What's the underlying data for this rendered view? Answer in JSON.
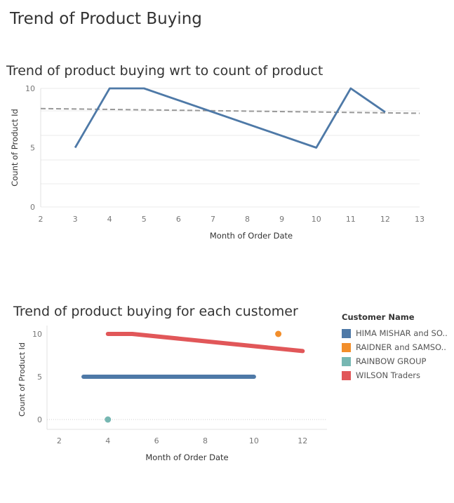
{
  "dashboard": {
    "title": "Trend of Product Buying"
  },
  "legend": {
    "title": "Customer Name",
    "items": [
      {
        "label": "HIMA MISHAR and SO..",
        "color": "#4e79a7"
      },
      {
        "label": "RAIDNER and SAMSO..",
        "color": "#f28e2b"
      },
      {
        "label": "RAINBOW GROUP",
        "color": "#76b7b2"
      },
      {
        "label": "WILSON Traders",
        "color": "#e15759"
      }
    ]
  },
  "chart_data": [
    {
      "type": "line",
      "title": "Trend of product buying wrt to count of product",
      "xlabel": "Month of Order Date",
      "ylabel": "Count of Product Id",
      "xlim": [
        2,
        13
      ],
      "ylim": [
        0,
        10
      ],
      "xticks": [
        "2",
        "3",
        "4",
        "5",
        "6",
        "7",
        "8",
        "9",
        "10",
        "11",
        "12",
        "13"
      ],
      "yticks": [
        "0",
        "5",
        "10"
      ],
      "grid": true,
      "series": [
        {
          "x": [
            3,
            4,
            5,
            10,
            11,
            12
          ],
          "y": [
            5,
            10,
            10,
            5,
            10,
            8
          ],
          "color": "#4e79a7"
        }
      ],
      "trend_line": {
        "x": [
          2,
          13
        ],
        "y": [
          8.3,
          7.9
        ],
        "color": "#999999",
        "style": "dashed"
      }
    },
    {
      "type": "line",
      "title": "Trend of product buying for each customer",
      "xlabel": "Month of Order Date",
      "ylabel": "Count of Product Id",
      "xlim": [
        1.5,
        13
      ],
      "ylim": [
        0,
        10
      ],
      "xticks": [
        "2",
        "4",
        "6",
        "8",
        "10",
        "12"
      ],
      "yticks": [
        "0",
        "5",
        "10"
      ],
      "legend": "right",
      "series": [
        {
          "name": "HIMA MISHAR and SO..",
          "x": [
            3,
            10
          ],
          "y": [
            5,
            5
          ],
          "color": "#4e79a7"
        },
        {
          "name": "RAIDNER and SAMSO..",
          "x": [
            11
          ],
          "y": [
            10
          ],
          "color": "#f28e2b"
        },
        {
          "name": "RAINBOW GROUP",
          "x": [
            4
          ],
          "y": [
            0
          ],
          "color": "#76b7b2"
        },
        {
          "name": "WILSON Traders",
          "x": [
            4,
            5,
            12
          ],
          "y": [
            10,
            10,
            8
          ],
          "color": "#e15759"
        }
      ]
    }
  ]
}
